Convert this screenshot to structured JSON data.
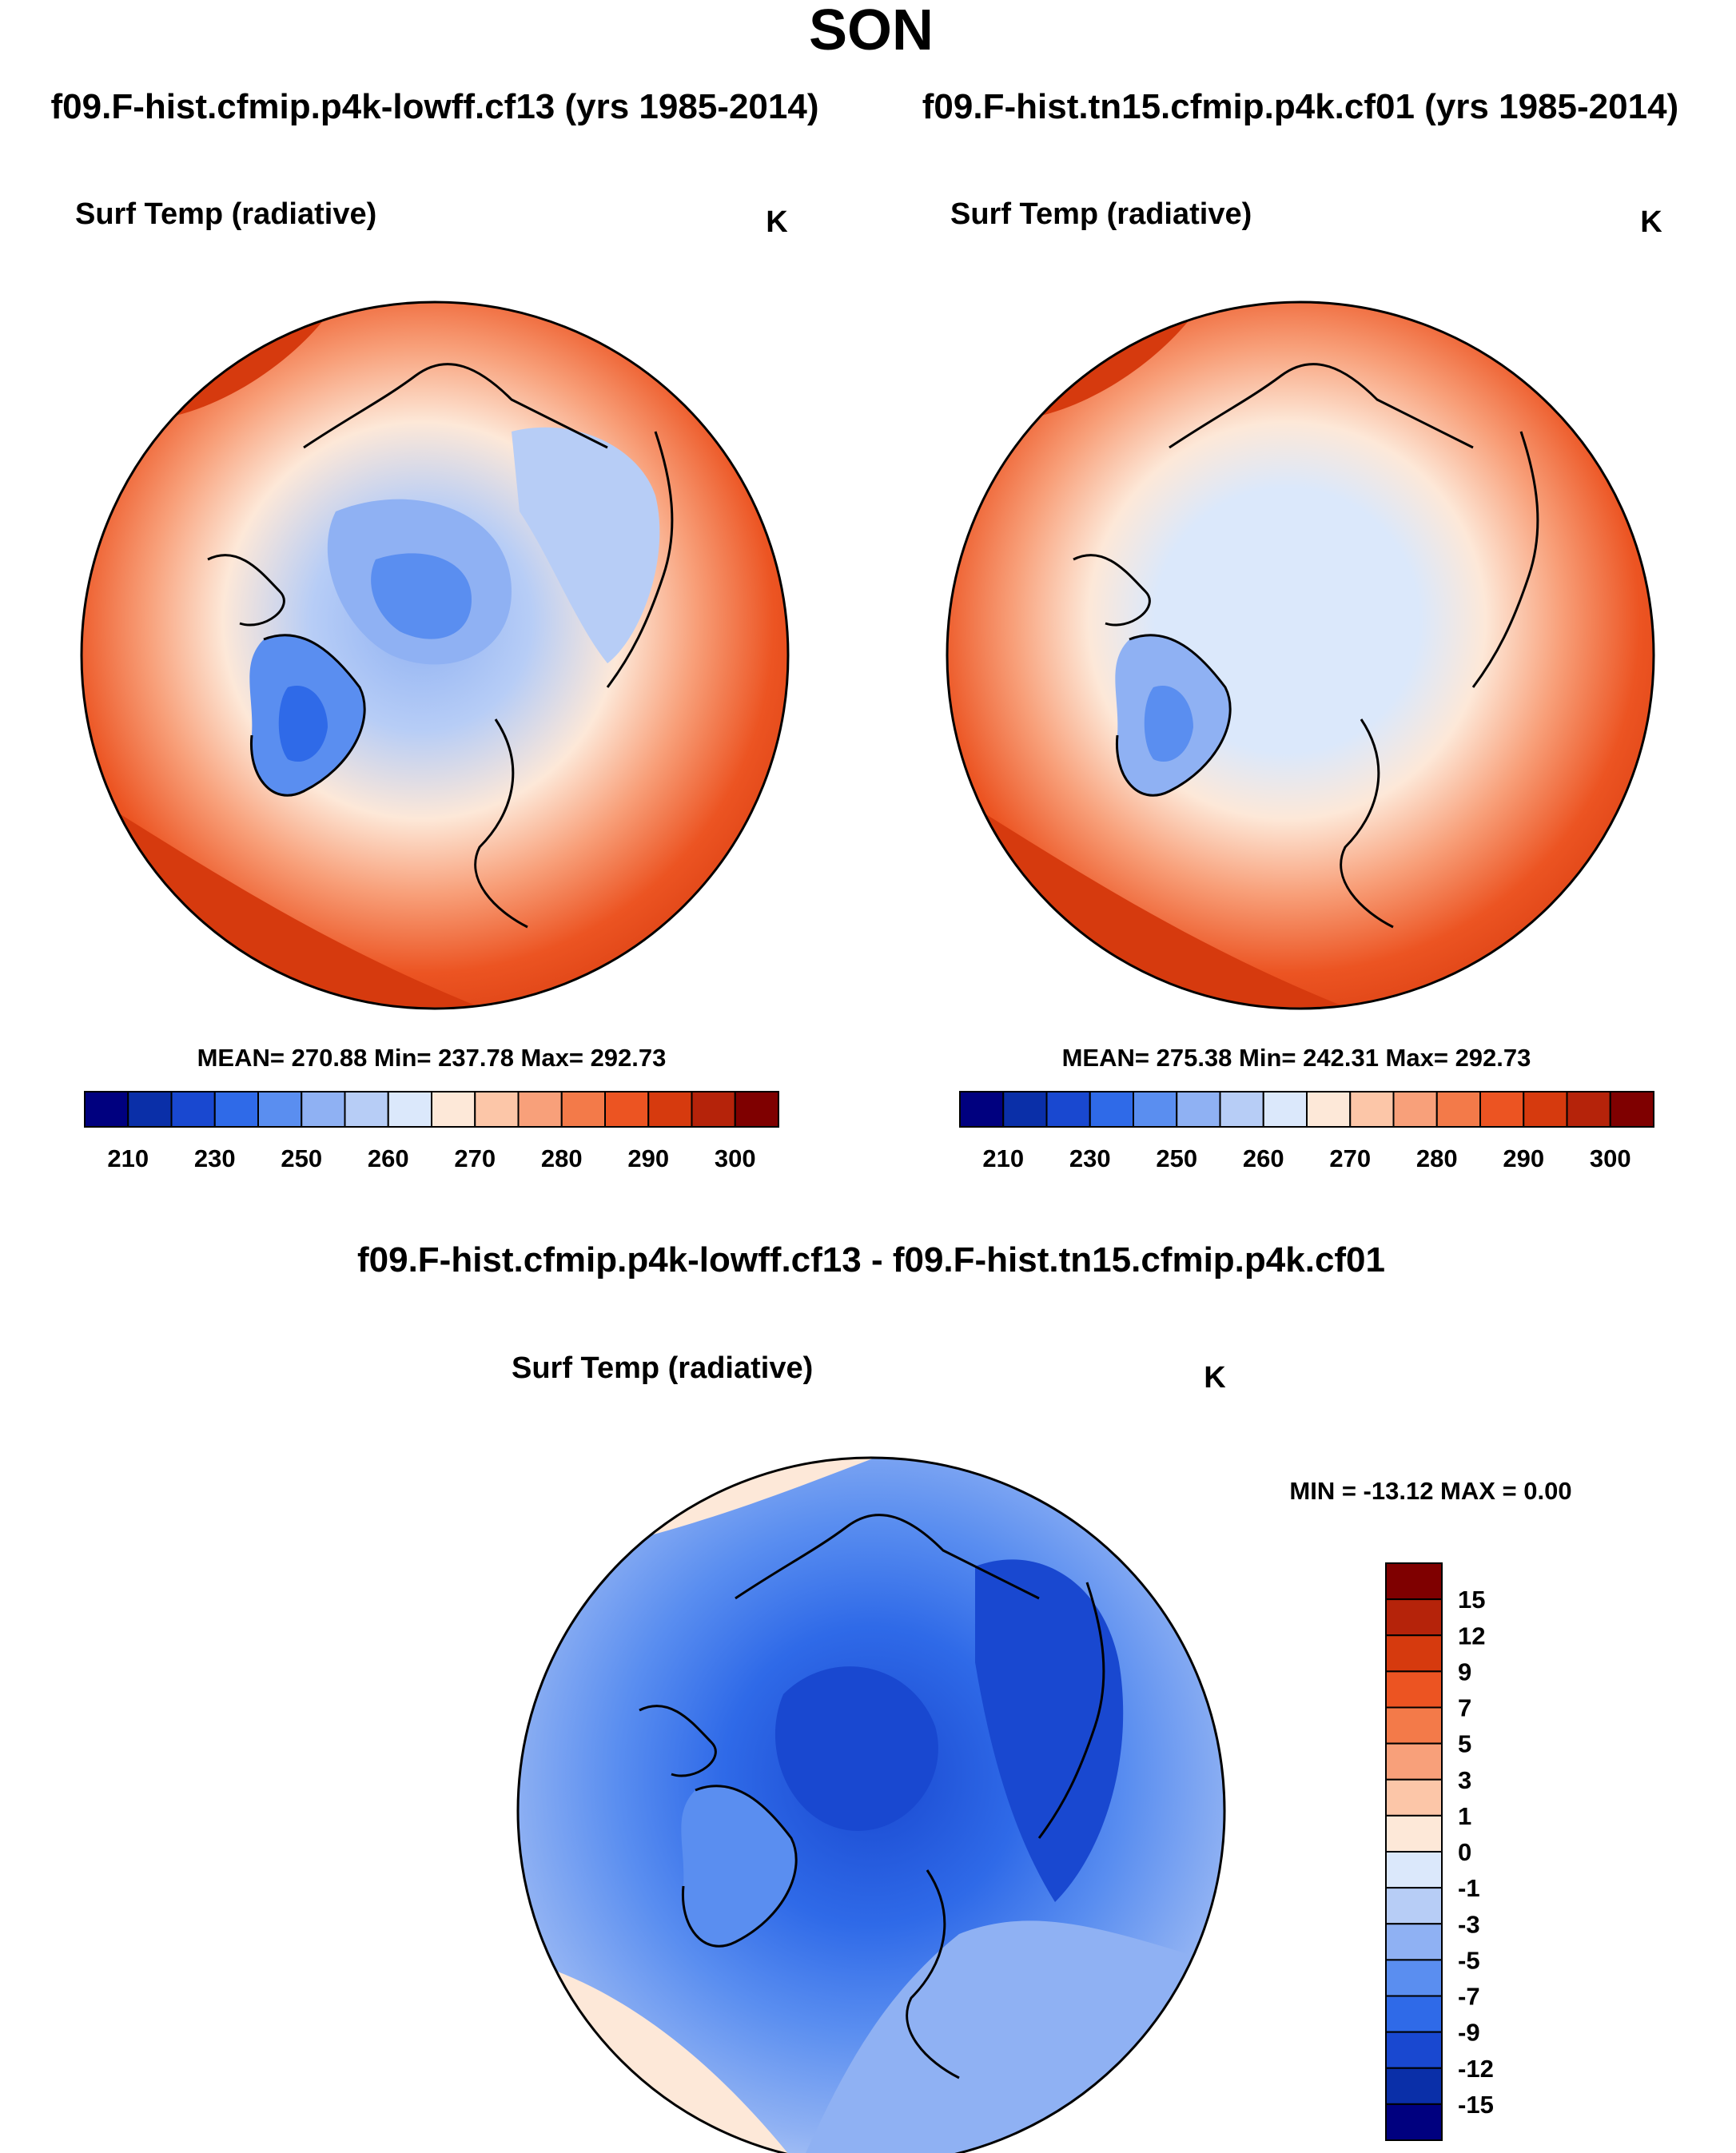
{
  "title": "SON",
  "panel_left": {
    "case_label": "f09.F-hist.cfmip.p4k-lowff.cf13 (yrs 1985-2014)",
    "variable": "Surf Temp (radiative)",
    "units": "K",
    "stats": "MEAN= 270.88  Min= 237.78  Max= 292.73"
  },
  "panel_right": {
    "case_label": "f09.F-hist.tn15.cfmip.p4k.cf01 (yrs 1985-2014)",
    "variable": "Surf Temp (radiative)",
    "units": "K",
    "stats": "MEAN= 275.38  Min= 242.31  Max= 292.73"
  },
  "panel_diff": {
    "case_label": "f09.F-hist.cfmip.p4k-lowff.cf13 - f09.F-hist.tn15.cfmip.p4k.cf01",
    "variable": "Surf Temp (radiative)",
    "units": "K",
    "stats": "MIN = -13.12 MAX =   0.00"
  },
  "chart_data": [
    {
      "type": "heatmap",
      "projection": "north-polar-stereographic",
      "title": "Surf Temp (radiative)",
      "subtitle": "f09.F-hist.cfmip.p4k-lowff.cf13 (yrs 1985-2014)",
      "units": "K",
      "mean": 270.88,
      "min": 237.78,
      "max": 292.73,
      "colorbar": {
        "orientation": "horizontal",
        "tick_labels": [
          "210",
          "230",
          "250",
          "270",
          "280",
          "290",
          "300"
        ],
        "tick_labels_shown": [
          "210",
          "230",
          "250",
          "260",
          "270",
          "280",
          "290",
          "300"
        ],
        "colors": [
          "#00007f",
          "#0a2fa8",
          "#1948d0",
          "#2f6ae8",
          "#5a8ef0",
          "#8fb1f3",
          "#b7cdf6",
          "#dbe8fb",
          "#fde8d8",
          "#fcc6a8",
          "#f8a07a",
          "#f37a49",
          "#ec5422",
          "#d63a0e",
          "#b5230a",
          "#7f0000"
        ]
      }
    },
    {
      "type": "heatmap",
      "projection": "north-polar-stereographic",
      "title": "Surf Temp (radiative)",
      "subtitle": "f09.F-hist.tn15.cfmip.p4k.cf01 (yrs 1985-2014)",
      "units": "K",
      "mean": 275.38,
      "min": 242.31,
      "max": 292.73,
      "colorbar": {
        "orientation": "horizontal",
        "tick_labels_shown": [
          "210",
          "230",
          "250",
          "260",
          "270",
          "280",
          "290",
          "300"
        ],
        "colors": [
          "#00007f",
          "#0a2fa8",
          "#1948d0",
          "#2f6ae8",
          "#5a8ef0",
          "#8fb1f3",
          "#b7cdf6",
          "#dbe8fb",
          "#fde8d8",
          "#fcc6a8",
          "#f8a07a",
          "#f37a49",
          "#ec5422",
          "#d63a0e",
          "#b5230a",
          "#7f0000"
        ]
      }
    },
    {
      "type": "heatmap",
      "projection": "north-polar-stereographic",
      "title": "Surf Temp (radiative)",
      "subtitle": "f09.F-hist.cfmip.p4k-lowff.cf13 - f09.F-hist.tn15.cfmip.p4k.cf01",
      "units": "K",
      "min": -13.12,
      "max": 0.0,
      "colorbar": {
        "orientation": "vertical",
        "tick_labels": [
          "15",
          "12",
          "9",
          "7",
          "5",
          "3",
          "1",
          "0",
          "-1",
          "-3",
          "-5",
          "-7",
          "-9",
          "-12",
          "-15"
        ],
        "colors": [
          "#7f0000",
          "#b5230a",
          "#d63a0e",
          "#ec5422",
          "#f37a49",
          "#f8a07a",
          "#fcc6a8",
          "#fde8d8",
          "#dbe8fb",
          "#b7cdf6",
          "#8fb1f3",
          "#5a8ef0",
          "#2f6ae8",
          "#1948d0",
          "#0a2fa8",
          "#00007f"
        ]
      }
    }
  ]
}
